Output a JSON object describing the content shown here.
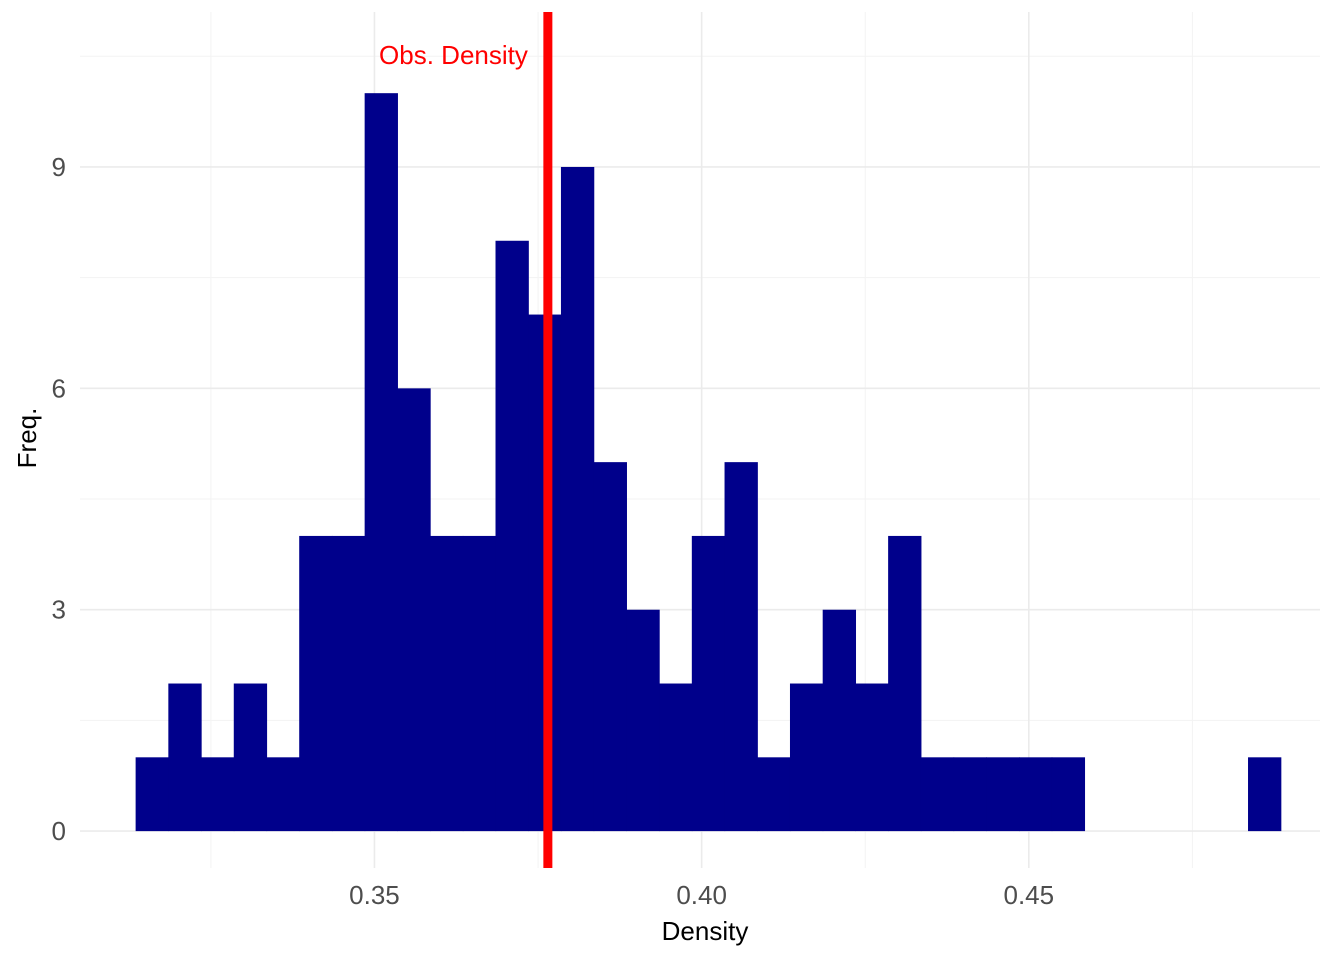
{
  "chart_data": {
    "type": "bar",
    "subtype": "histogram",
    "bin_width": 0.005,
    "bins": [
      {
        "x_start": 0.3135,
        "x_end": 0.3185,
        "count": 1
      },
      {
        "x_start": 0.3185,
        "x_end": 0.3235,
        "count": 2
      },
      {
        "x_start": 0.3235,
        "x_end": 0.3285,
        "count": 1
      },
      {
        "x_start": 0.3285,
        "x_end": 0.3335,
        "count": 2
      },
      {
        "x_start": 0.3335,
        "x_end": 0.3385,
        "count": 1
      },
      {
        "x_start": 0.3385,
        "x_end": 0.3435,
        "count": 4
      },
      {
        "x_start": 0.3435,
        "x_end": 0.3485,
        "count": 4
      },
      {
        "x_start": 0.3485,
        "x_end": 0.3535,
        "count": 10
      },
      {
        "x_start": 0.3535,
        "x_end": 0.3585,
        "count": 6
      },
      {
        "x_start": 0.3585,
        "x_end": 0.3635,
        "count": 4
      },
      {
        "x_start": 0.3635,
        "x_end": 0.3685,
        "count": 4
      },
      {
        "x_start": 0.3685,
        "x_end": 0.3735,
        "count": 8
      },
      {
        "x_start": 0.3735,
        "x_end": 0.3785,
        "count": 7
      },
      {
        "x_start": 0.3785,
        "x_end": 0.3835,
        "count": 9
      },
      {
        "x_start": 0.3835,
        "x_end": 0.3885,
        "count": 5
      },
      {
        "x_start": 0.3885,
        "x_end": 0.3935,
        "count": 3
      },
      {
        "x_start": 0.3935,
        "x_end": 0.3985,
        "count": 2
      },
      {
        "x_start": 0.3985,
        "x_end": 0.4035,
        "count": 4
      },
      {
        "x_start": 0.4035,
        "x_end": 0.4085,
        "count": 5
      },
      {
        "x_start": 0.4085,
        "x_end": 0.4135,
        "count": 1
      },
      {
        "x_start": 0.4135,
        "x_end": 0.4185,
        "count": 2
      },
      {
        "x_start": 0.4185,
        "x_end": 0.4235,
        "count": 3
      },
      {
        "x_start": 0.4235,
        "x_end": 0.4285,
        "count": 2
      },
      {
        "x_start": 0.4285,
        "x_end": 0.4335,
        "count": 4
      },
      {
        "x_start": 0.4335,
        "x_end": 0.4385,
        "count": 1
      },
      {
        "x_start": 0.4385,
        "x_end": 0.4435,
        "count": 1
      },
      {
        "x_start": 0.4435,
        "x_end": 0.4485,
        "count": 1
      },
      {
        "x_start": 0.4485,
        "x_end": 0.4535,
        "count": 1
      },
      {
        "x_start": 0.4535,
        "x_end": 0.4585,
        "count": 1
      },
      {
        "x_start": 0.4835,
        "x_end": 0.4885,
        "count": 1
      }
    ],
    "observed_line": {
      "x": 0.3765,
      "label": "Obs. Density",
      "color": "#ff0000"
    },
    "bar_color": "#00008b",
    "title": "",
    "xlabel": "Density",
    "ylabel": "Freq.",
    "xlim": [
      0.305,
      0.4945
    ],
    "ylim": [
      -0.5,
      11.1
    ],
    "x_ticks": [
      0.35,
      0.4,
      0.45
    ],
    "x_tick_labels": [
      "0.35",
      "0.40",
      "0.45"
    ],
    "y_ticks": [
      0,
      3,
      6,
      9
    ],
    "y_tick_labels": [
      "0",
      "3",
      "6",
      "9"
    ],
    "x_minor_ticks": [
      0.325,
      0.375,
      0.425,
      0.475
    ],
    "y_minor_ticks": [
      1.5,
      4.5,
      7.5,
      10.5
    ],
    "grid": true,
    "legend": "none"
  }
}
